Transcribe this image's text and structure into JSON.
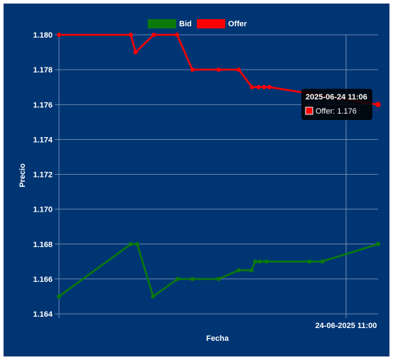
{
  "colors": {
    "background": "#003573",
    "bid": "#0b7a0b",
    "offer": "#ff0000",
    "grid": "#8aa2c4"
  },
  "chart_data": {
    "type": "line",
    "xlabel": "Fecha",
    "ylabel": "Precio",
    "ylim": [
      1.164,
      1.18
    ],
    "yticks": [
      "1.180",
      "1.178",
      "1.176",
      "1.174",
      "1.172",
      "1.170",
      "1.168",
      "1.166",
      "1.164"
    ],
    "xtick_label": "24-06-2025 11:00",
    "legend": {
      "placement": "top-center",
      "entries": [
        "Bid",
        "Offer"
      ]
    },
    "grid": true,
    "series": [
      {
        "name": "Bid",
        "color": "#0b7a0b",
        "points": [
          [
            0.0,
            1.165
          ],
          [
            0.225,
            1.168
          ],
          [
            0.245,
            1.168
          ],
          [
            0.295,
            1.165
          ],
          [
            0.372,
            1.166
          ],
          [
            0.418,
            1.166
          ],
          [
            0.5,
            1.166
          ],
          [
            0.563,
            1.1665
          ],
          [
            0.603,
            1.1665
          ],
          [
            0.615,
            1.167
          ],
          [
            0.63,
            1.167
          ],
          [
            0.65,
            1.167
          ],
          [
            0.785,
            1.167
          ],
          [
            0.825,
            1.167
          ],
          [
            1.0,
            1.168
          ]
        ]
      },
      {
        "name": "Offer",
        "color": "#ff0000",
        "points": [
          [
            0.0,
            1.18
          ],
          [
            0.225,
            1.18
          ],
          [
            0.24,
            1.179
          ],
          [
            0.297,
            1.18
          ],
          [
            0.37,
            1.18
          ],
          [
            0.418,
            1.178
          ],
          [
            0.5,
            1.178
          ],
          [
            0.563,
            1.178
          ],
          [
            0.605,
            1.177
          ],
          [
            0.625,
            1.177
          ],
          [
            0.643,
            1.177
          ],
          [
            0.66,
            1.177
          ],
          [
            1.0,
            1.176
          ]
        ]
      }
    ],
    "tooltip": {
      "title": "2025-06-24 11:06",
      "text": "Offer: 1.176"
    }
  }
}
